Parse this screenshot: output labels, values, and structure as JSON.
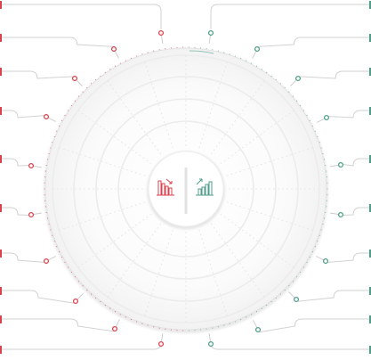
{
  "colors": {
    "loss": "#d9434d",
    "gain": "#4f9e8a",
    "line": "#d2d2d2",
    "guide": "#c9c9c9",
    "ring": "#ececec",
    "disc": "#f6f6f6"
  },
  "center": {
    "left_icon": "bar-chart-down-icon",
    "right_icon": "bar-chart-up-icon"
  },
  "diagram": {
    "type": "radial-callout",
    "ring_count": 6,
    "spoke_count": 20,
    "left_callouts": 10,
    "right_callouts": 10
  }
}
